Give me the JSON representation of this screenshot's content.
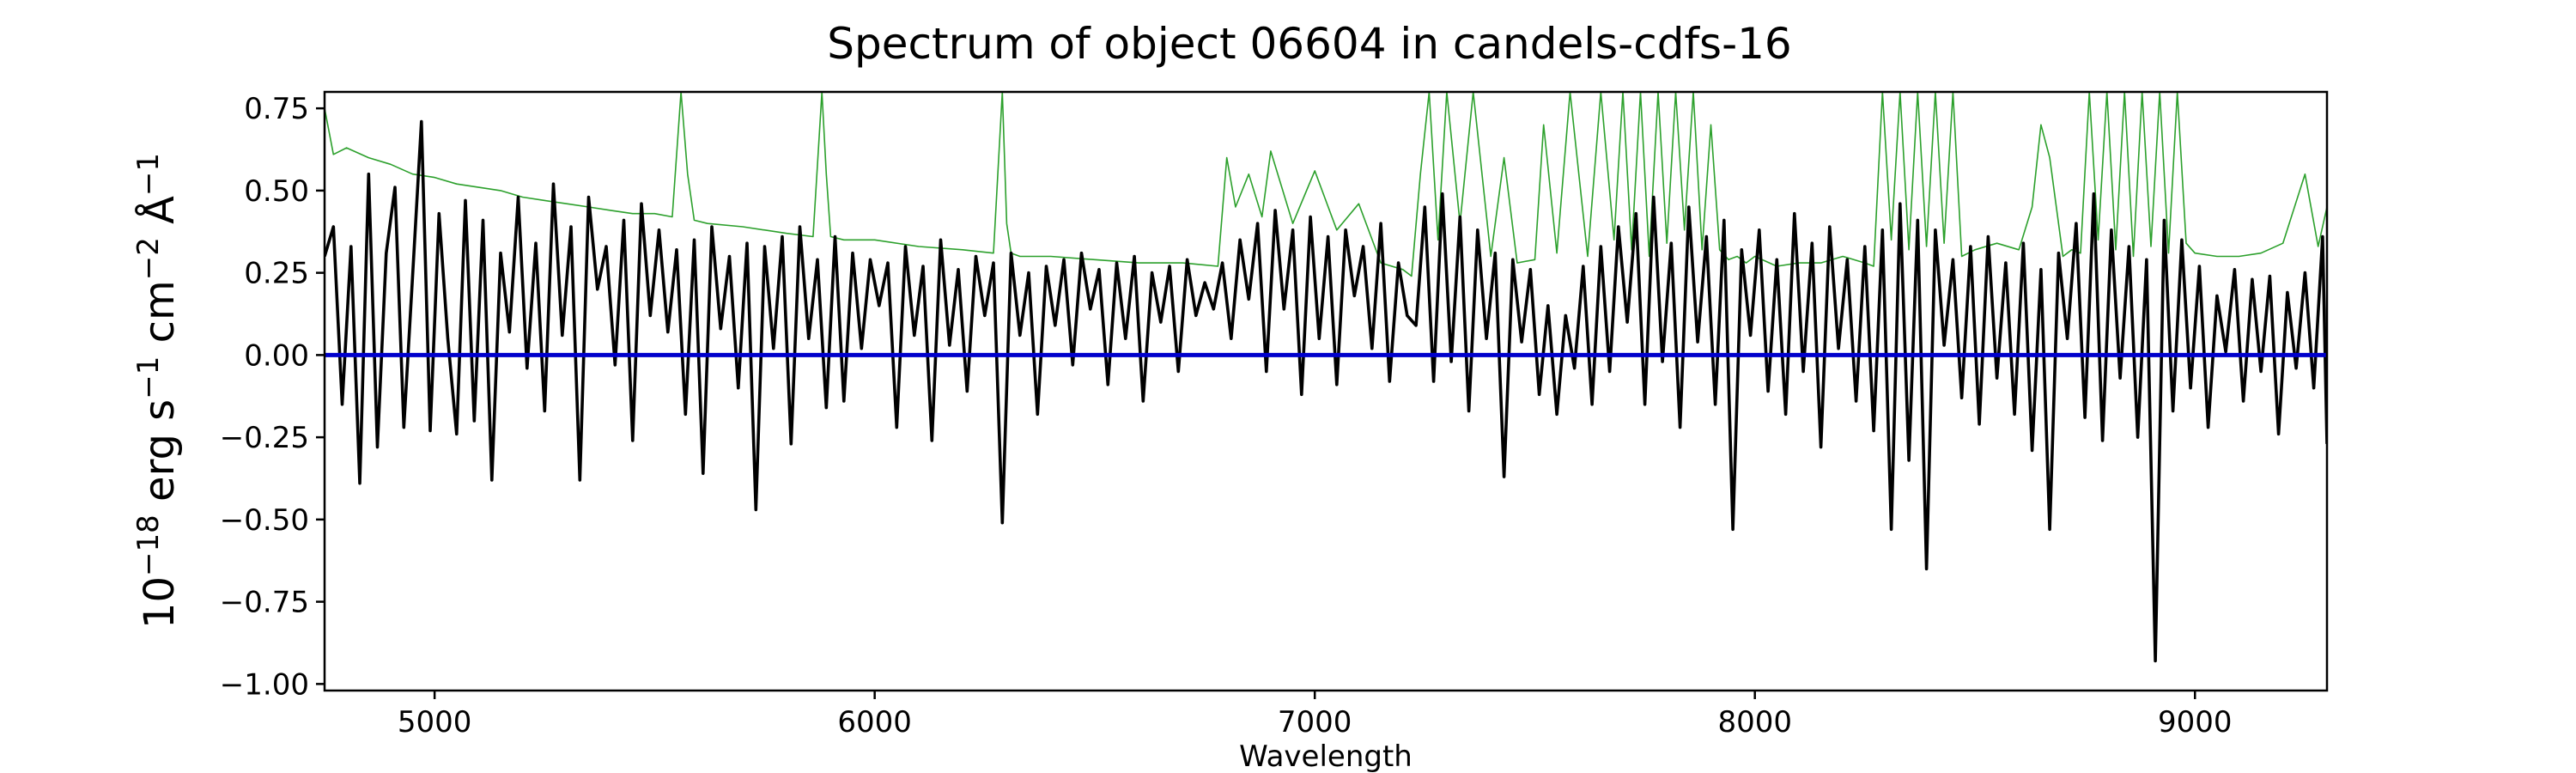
{
  "chart_data": {
    "type": "line",
    "title": "Spectrum of object 06604 in candels-cdfs-16",
    "xlabel": "Wavelength",
    "ylabel": {
      "base": "10",
      "exp": "−18",
      "unit1": " erg s",
      "exp1": "−1",
      "unit2": " cm",
      "exp2": "−2",
      "unit3": " Å",
      "exp3": "−1"
    },
    "xlim": [
      4750,
      9300
    ],
    "ylim": [
      -1.02,
      0.8
    ],
    "xticks": [
      5000,
      6000,
      7000,
      8000,
      9000
    ],
    "xtick_labels": [
      "5000",
      "6000",
      "7000",
      "8000",
      "9000"
    ],
    "yticks": [
      0.75,
      0.5,
      0.25,
      0.0,
      -0.25,
      -0.5,
      -0.75,
      -1.0
    ],
    "ytick_labels": [
      "0.75",
      "0.50",
      "0.25",
      "0.00",
      "−0.25",
      "−0.50",
      "−0.75",
      "−1.00"
    ],
    "grid": false,
    "colors": {
      "flux": "#000000",
      "error": "#2ca02c",
      "zero": "#0000cc"
    },
    "series": [
      {
        "role": "flux",
        "x": [
          4750,
          4770,
          4790,
          4810,
          4830,
          4850,
          4870,
          4890,
          4910,
          4930,
          4950,
          4970,
          4990,
          5010,
          5030,
          5050,
          5070,
          5090,
          5110,
          5130,
          5150,
          5170,
          5190,
          5210,
          5230,
          5250,
          5270,
          5290,
          5310,
          5330,
          5350,
          5370,
          5390,
          5410,
          5430,
          5450,
          5470,
          5490,
          5510,
          5530,
          5550,
          5570,
          5590,
          5610,
          5630,
          5650,
          5670,
          5690,
          5710,
          5730,
          5750,
          5770,
          5790,
          5810,
          5830,
          5850,
          5870,
          5890,
          5910,
          5930,
          5950,
          5970,
          5990,
          6010,
          6030,
          6050,
          6070,
          6090,
          6110,
          6130,
          6150,
          6170,
          6190,
          6210,
          6230,
          6250,
          6270,
          6290,
          6310,
          6330,
          6350,
          6370,
          6390,
          6410,
          6430,
          6450,
          6470,
          6490,
          6510,
          6530,
          6550,
          6570,
          6590,
          6610,
          6630,
          6650,
          6670,
          6690,
          6710,
          6730,
          6750,
          6770,
          6790,
          6810,
          6830,
          6850,
          6870,
          6890,
          6910,
          6930,
          6950,
          6970,
          6990,
          7010,
          7030,
          7050,
          7070,
          7090,
          7110,
          7130,
          7150,
          7170,
          7190,
          7210,
          7230,
          7250,
          7270,
          7290,
          7310,
          7330,
          7350,
          7370,
          7390,
          7410,
          7430,
          7450,
          7470,
          7490,
          7510,
          7530,
          7550,
          7570,
          7590,
          7610,
          7630,
          7650,
          7670,
          7690,
          7710,
          7730,
          7750,
          7770,
          7790,
          7810,
          7830,
          7850,
          7870,
          7890,
          7910,
          7930,
          7950,
          7970,
          7990,
          8010,
          8030,
          8050,
          8070,
          8090,
          8110,
          8130,
          8150,
          8170,
          8190,
          8210,
          8230,
          8250,
          8270,
          8290,
          8310,
          8330,
          8350,
          8370,
          8390,
          8410,
          8430,
          8450,
          8470,
          8490,
          8510,
          8530,
          8550,
          8570,
          8590,
          8610,
          8630,
          8650,
          8670,
          8690,
          8710,
          8730,
          8750,
          8770,
          8790,
          8810,
          8830,
          8850,
          8870,
          8890,
          8910,
          8930,
          8950,
          8970,
          8990,
          9010,
          9030,
          9050,
          9070,
          9090,
          9110,
          9130,
          9150,
          9170,
          9190,
          9210,
          9230,
          9250,
          9270,
          9290,
          9300
        ],
        "y": [
          0.3,
          0.39,
          -0.15,
          0.33,
          -0.39,
          0.55,
          -0.28,
          0.31,
          0.51,
          -0.22,
          0.24,
          0.71,
          -0.23,
          0.43,
          0.05,
          -0.24,
          0.47,
          -0.2,
          0.41,
          -0.38,
          0.31,
          0.07,
          0.48,
          -0.04,
          0.34,
          -0.17,
          0.52,
          0.06,
          0.39,
          -0.38,
          0.48,
          0.2,
          0.33,
          -0.03,
          0.41,
          -0.26,
          0.46,
          0.12,
          0.38,
          0.07,
          0.32,
          -0.18,
          0.35,
          -0.36,
          0.39,
          0.08,
          0.3,
          -0.1,
          0.34,
          -0.47,
          0.33,
          0.02,
          0.36,
          -0.27,
          0.39,
          0.05,
          0.29,
          -0.16,
          0.36,
          -0.14,
          0.31,
          0.02,
          0.29,
          0.15,
          0.28,
          -0.22,
          0.33,
          0.06,
          0.27,
          -0.26,
          0.35,
          0.03,
          0.26,
          -0.11,
          0.3,
          0.12,
          0.28,
          -0.51,
          0.31,
          0.06,
          0.25,
          -0.18,
          0.27,
          0.09,
          0.29,
          -0.03,
          0.31,
          0.14,
          0.26,
          -0.09,
          0.28,
          0.05,
          0.3,
          -0.14,
          0.25,
          0.1,
          0.27,
          -0.05,
          0.29,
          0.12,
          0.22,
          0.14,
          0.28,
          0.05,
          0.35,
          0.17,
          0.4,
          -0.05,
          0.44,
          0.14,
          0.38,
          -0.12,
          0.42,
          0.05,
          0.36,
          -0.09,
          0.38,
          0.18,
          0.33,
          0.02,
          0.4,
          -0.08,
          0.28,
          0.12,
          0.09,
          0.45,
          -0.08,
          0.49,
          -0.02,
          0.42,
          -0.17,
          0.38,
          0.05,
          0.31,
          -0.37,
          0.29,
          0.04,
          0.26,
          -0.12,
          0.15,
          -0.18,
          0.12,
          -0.04,
          0.27,
          -0.15,
          0.33,
          -0.05,
          0.39,
          0.1,
          0.43,
          -0.15,
          0.48,
          -0.02,
          0.34,
          -0.22,
          0.45,
          0.04,
          0.36,
          -0.15,
          0.41,
          -0.53,
          0.32,
          0.06,
          0.38,
          -0.11,
          0.29,
          -0.18,
          0.43,
          -0.05,
          0.34,
          -0.28,
          0.39,
          0.02,
          0.29,
          -0.14,
          0.33,
          -0.23,
          0.38,
          -0.53,
          0.46,
          -0.32,
          0.41,
          -0.65,
          0.38,
          0.03,
          0.29,
          -0.13,
          0.33,
          -0.21,
          0.36,
          -0.07,
          0.28,
          -0.18,
          0.34,
          -0.29,
          0.26,
          -0.53,
          0.31,
          0.05,
          0.4,
          -0.19,
          0.49,
          -0.26,
          0.38,
          -0.07,
          0.33,
          -0.25,
          0.29,
          -0.93,
          0.41,
          -0.17,
          0.35,
          -0.1,
          0.27,
          -0.22,
          0.18,
          0.01,
          0.26,
          -0.14,
          0.23,
          -0.05,
          0.24,
          -0.24,
          0.19,
          -0.04,
          0.25,
          -0.1,
          0.36,
          -0.27
        ]
      },
      {
        "role": "error",
        "x": [
          4750,
          4770,
          4800,
          4850,
          4900,
          4950,
          5000,
          5050,
          5100,
          5150,
          5200,
          5250,
          5300,
          5350,
          5400,
          5450,
          5500,
          5540,
          5560,
          5575,
          5590,
          5620,
          5700,
          5800,
          5860,
          5880,
          5890,
          5900,
          5930,
          6000,
          6100,
          6200,
          6270,
          6290,
          6300,
          6310,
          6330,
          6400,
          6500,
          6600,
          6700,
          6780,
          6800,
          6820,
          6850,
          6880,
          6900,
          6950,
          7000,
          7050,
          7100,
          7150,
          7200,
          7220,
          7240,
          7260,
          7280,
          7300,
          7330,
          7360,
          7400,
          7430,
          7460,
          7500,
          7520,
          7550,
          7580,
          7600,
          7620,
          7650,
          7680,
          7700,
          7720,
          7740,
          7760,
          7780,
          7800,
          7820,
          7840,
          7860,
          7880,
          7900,
          7920,
          7940,
          7960,
          7980,
          8000,
          8050,
          8100,
          8150,
          8200,
          8250,
          8270,
          8290,
          8310,
          8330,
          8350,
          8370,
          8390,
          8410,
          8430,
          8450,
          8470,
          8500,
          8550,
          8600,
          8630,
          8650,
          8670,
          8700,
          8720,
          8740,
          8760,
          8780,
          8800,
          8820,
          8840,
          8860,
          8880,
          8900,
          8920,
          8940,
          8960,
          8980,
          9000,
          9050,
          9100,
          9150,
          9200,
          9250,
          9280,
          9300
        ],
        "y": [
          0.75,
          0.61,
          0.63,
          0.6,
          0.58,
          0.55,
          0.54,
          0.52,
          0.51,
          0.5,
          0.48,
          0.47,
          0.46,
          0.45,
          0.44,
          0.43,
          0.43,
          0.42,
          0.8,
          0.55,
          0.41,
          0.4,
          0.39,
          0.37,
          0.36,
          0.8,
          0.55,
          0.36,
          0.35,
          0.35,
          0.33,
          0.32,
          0.31,
          0.8,
          0.4,
          0.31,
          0.3,
          0.3,
          0.29,
          0.28,
          0.28,
          0.27,
          0.6,
          0.45,
          0.55,
          0.42,
          0.62,
          0.4,
          0.56,
          0.38,
          0.46,
          0.28,
          0.26,
          0.24,
          0.55,
          0.8,
          0.35,
          0.8,
          0.4,
          0.8,
          0.3,
          0.6,
          0.28,
          0.29,
          0.7,
          0.31,
          0.8,
          0.55,
          0.3,
          0.8,
          0.35,
          0.8,
          0.32,
          0.8,
          0.3,
          0.8,
          0.34,
          0.8,
          0.38,
          0.8,
          0.32,
          0.7,
          0.32,
          0.29,
          0.3,
          0.28,
          0.3,
          0.27,
          0.28,
          0.28,
          0.3,
          0.28,
          0.27,
          0.8,
          0.35,
          0.8,
          0.32,
          0.8,
          0.33,
          0.8,
          0.34,
          0.8,
          0.3,
          0.32,
          0.34,
          0.32,
          0.45,
          0.7,
          0.6,
          0.3,
          0.32,
          0.31,
          0.8,
          0.35,
          0.8,
          0.32,
          0.8,
          0.3,
          0.8,
          0.33,
          0.8,
          0.31,
          0.8,
          0.34,
          0.31,
          0.3,
          0.3,
          0.31,
          0.34,
          0.55,
          0.33,
          0.45
        ]
      },
      {
        "role": "zero",
        "x": [
          4750,
          9300
        ],
        "y": [
          0.0,
          0.0
        ]
      }
    ]
  }
}
